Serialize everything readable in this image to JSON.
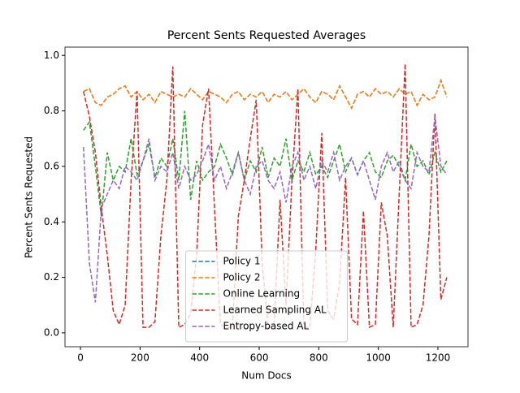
{
  "chart_data": {
    "type": "line",
    "title": "Percent Sents Requested Averages",
    "x_label": "Num Docs",
    "y_label": "Percent Sents Requested",
    "x": [
      10,
      30,
      50,
      70,
      90,
      110,
      130,
      150,
      170,
      190,
      210,
      230,
      250,
      270,
      290,
      310,
      330,
      350,
      370,
      390,
      410,
      430,
      450,
      470,
      490,
      510,
      530,
      550,
      570,
      590,
      610,
      630,
      650,
      670,
      690,
      710,
      730,
      750,
      770,
      790,
      810,
      830,
      850,
      870,
      890,
      910,
      930,
      950,
      970,
      990,
      1010,
      1030,
      1050,
      1070,
      1090,
      1110,
      1130,
      1150,
      1170,
      1190,
      1210,
      1230
    ],
    "series": [
      {
        "name": "Policy 1",
        "color": "#1f77b4",
        "values": [
          0.87,
          0.88,
          0.83,
          0.82,
          0.85,
          0.86,
          0.88,
          0.89,
          0.85,
          0.87,
          0.84,
          0.86,
          0.83,
          0.87,
          0.86,
          0.85,
          0.86,
          0.85,
          0.88,
          0.86,
          0.84,
          0.87,
          0.86,
          0.85,
          0.83,
          0.86,
          0.87,
          0.84,
          0.86,
          0.85,
          0.87,
          0.83,
          0.86,
          0.85,
          0.87,
          0.84,
          0.86,
          0.88,
          0.85,
          0.83,
          0.87,
          0.86,
          0.84,
          0.89,
          0.85,
          0.81,
          0.86,
          0.87,
          0.85,
          0.88,
          0.86,
          0.87,
          0.85,
          0.88,
          0.86,
          0.87,
          0.82,
          0.86,
          0.84,
          0.85,
          0.91,
          0.85
        ]
      },
      {
        "name": "Policy 2",
        "color": "#ff7f0e",
        "values": [
          0.87,
          0.88,
          0.83,
          0.82,
          0.85,
          0.86,
          0.88,
          0.89,
          0.85,
          0.87,
          0.84,
          0.86,
          0.83,
          0.87,
          0.86,
          0.85,
          0.86,
          0.85,
          0.88,
          0.86,
          0.84,
          0.87,
          0.86,
          0.85,
          0.83,
          0.86,
          0.87,
          0.84,
          0.86,
          0.85,
          0.87,
          0.83,
          0.86,
          0.85,
          0.87,
          0.84,
          0.86,
          0.88,
          0.85,
          0.83,
          0.87,
          0.86,
          0.84,
          0.89,
          0.85,
          0.81,
          0.86,
          0.87,
          0.85,
          0.88,
          0.86,
          0.87,
          0.85,
          0.88,
          0.86,
          0.87,
          0.82,
          0.86,
          0.84,
          0.85,
          0.91,
          0.85
        ]
      },
      {
        "name": "Online Learning",
        "color": "#2ca02c",
        "values": [
          0.73,
          0.76,
          0.6,
          0.42,
          0.65,
          0.55,
          0.6,
          0.58,
          0.7,
          0.57,
          0.62,
          0.68,
          0.56,
          0.63,
          0.6,
          0.7,
          0.55,
          0.8,
          0.48,
          0.62,
          0.55,
          0.58,
          0.6,
          0.68,
          0.63,
          0.57,
          0.65,
          0.55,
          0.62,
          0.58,
          0.67,
          0.56,
          0.63,
          0.6,
          0.7,
          0.55,
          0.62,
          0.58,
          0.65,
          0.57,
          0.6,
          0.56,
          0.62,
          0.68,
          0.58,
          0.63,
          0.57,
          0.62,
          0.65,
          0.58,
          0.56,
          0.62,
          0.64,
          0.6,
          0.55,
          0.68,
          0.6,
          0.62,
          0.57,
          0.65,
          0.58,
          0.62
        ]
      },
      {
        "name": "Learned Sampling AL",
        "color": "#d62728",
        "values": [
          0.87,
          0.78,
          0.65,
          0.45,
          0.28,
          0.08,
          0.03,
          0.1,
          0.55,
          0.87,
          0.02,
          0.02,
          0.04,
          0.35,
          0.55,
          0.96,
          0.02,
          0.03,
          0.07,
          0.28,
          0.75,
          0.88,
          0.45,
          0.03,
          0.02,
          0.02,
          0.42,
          0.55,
          0.7,
          0.84,
          0.25,
          0.02,
          0.03,
          0.48,
          0.1,
          0.55,
          0.88,
          0.02,
          0.02,
          0.3,
          0.72,
          0.08,
          0.05,
          0.18,
          0.56,
          0.05,
          0.03,
          0.44,
          0.02,
          0.03,
          0.47,
          0.35,
          0.02,
          0.5,
          0.97,
          0.02,
          0.03,
          0.1,
          0.35,
          0.79,
          0.12,
          0.2
        ]
      },
      {
        "name": "Entropy-based AL",
        "color": "#9467bd",
        "values": [
          0.67,
          0.25,
          0.11,
          0.45,
          0.5,
          0.55,
          0.52,
          0.6,
          0.58,
          0.55,
          0.62,
          0.7,
          0.55,
          0.6,
          0.58,
          0.65,
          0.52,
          0.6,
          0.55,
          0.57,
          0.62,
          0.68,
          0.55,
          0.6,
          0.52,
          0.58,
          0.65,
          0.55,
          0.5,
          0.6,
          0.62,
          0.55,
          0.52,
          0.58,
          0.47,
          0.6,
          0.65,
          0.55,
          0.6,
          0.52,
          0.62,
          0.58,
          0.65,
          0.55,
          0.6,
          0.63,
          0.57,
          0.62,
          0.55,
          0.48,
          0.6,
          0.65,
          0.58,
          0.62,
          0.55,
          0.52,
          0.65,
          0.6,
          0.58,
          0.78,
          0.6,
          0.57
        ]
      }
    ],
    "xlim": [
      -52,
      1301
    ],
    "ylim": [
      -0.05,
      1.03
    ],
    "xticks": [
      0,
      200,
      400,
      600,
      800,
      1000,
      1200
    ],
    "yticks": [
      {
        "value": 0,
        "label": "0.0"
      },
      0.2,
      0.4,
      0.6,
      0.8,
      {
        "value": 1,
        "label": "1.0"
      }
    ],
    "legend": "lower center"
  }
}
